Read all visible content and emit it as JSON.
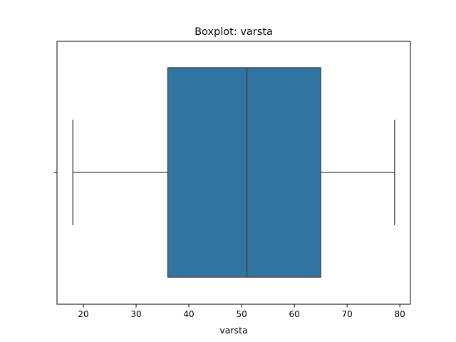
{
  "chart_data": {
    "type": "box",
    "title": "Boxplot: varsta",
    "xlabel": "varsta",
    "ylabel": "",
    "orientation": "horizontal",
    "xlim": [
      15,
      82
    ],
    "xticks": [
      20,
      30,
      40,
      50,
      60,
      70,
      80
    ],
    "grid": false,
    "legend": "none",
    "box": {
      "min": 18,
      "q1": 36,
      "median": 51,
      "q3": 65,
      "max": 79
    },
    "colors": {
      "box_fill": "#3274a1",
      "line": "#3f3f3f"
    }
  }
}
